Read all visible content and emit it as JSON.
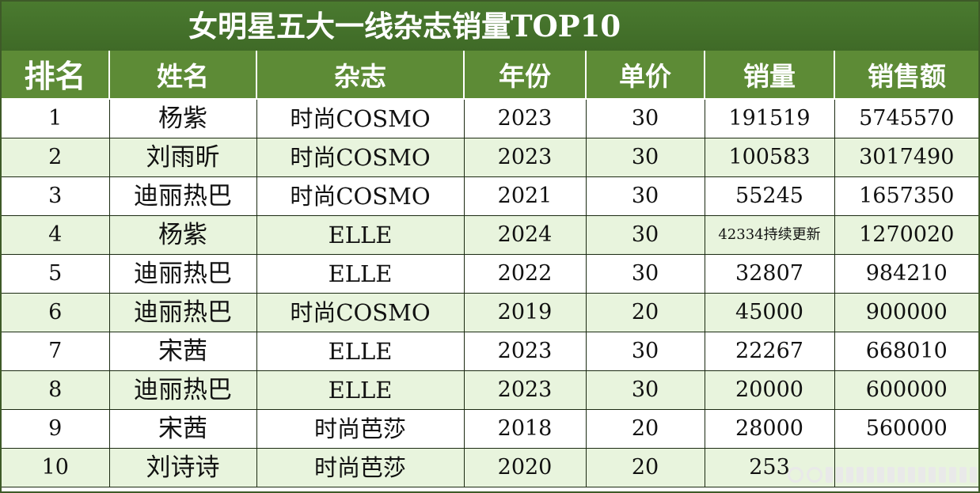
{
  "title": "女明星五大一线杂志销量TOP10",
  "headers": [
    "排名",
    "姓名",
    "杂志",
    "年份",
    "单价",
    "销量",
    "销售额"
  ],
  "rows": [
    {
      "rank": "1",
      "name": "杨紫",
      "magazine": "时尚COSMO",
      "year": "2023",
      "price": "30",
      "sales": "191519",
      "revenue": "5745570"
    },
    {
      "rank": "2",
      "name": "刘雨昕",
      "magazine": "时尚COSMO",
      "year": "2023",
      "price": "30",
      "sales": "100583",
      "revenue": "3017490"
    },
    {
      "rank": "3",
      "name": "迪丽热巴",
      "magazine": "时尚COSMO",
      "year": "2021",
      "price": "30",
      "sales": "55245",
      "revenue": "1657350"
    },
    {
      "rank": "4",
      "name": "杨紫",
      "magazine": "ELLE",
      "year": "2024",
      "price": "30",
      "sales": "42334持续更新",
      "revenue": "1270020"
    },
    {
      "rank": "5",
      "name": "迪丽热巴",
      "magazine": "ELLE",
      "year": "2022",
      "price": "30",
      "sales": "32807",
      "revenue": "984210"
    },
    {
      "rank": "6",
      "name": "迪丽热巴",
      "magazine": "时尚COSMO",
      "year": "2019",
      "price": "20",
      "sales": "45000",
      "revenue": "900000"
    },
    {
      "rank": "7",
      "name": "宋茜",
      "magazine": "ELLE",
      "year": "2023",
      "price": "30",
      "sales": "22267",
      "revenue": "668010"
    },
    {
      "rank": "8",
      "name": "迪丽热巴",
      "magazine": "ELLE",
      "year": "2023",
      "price": "30",
      "sales": "20000",
      "revenue": "600000"
    },
    {
      "rank": "9",
      "name": "宋茜",
      "magazine": "时尚芭莎",
      "year": "2018",
      "price": "20",
      "sales": "28000",
      "revenue": "560000"
    },
    {
      "rank": "10",
      "name": "刘诗诗",
      "magazine": "时尚芭莎",
      "year": "2020",
      "price": "20",
      "sales": "253",
      "revenue": ""
    }
  ],
  "colors": {
    "title_bg": "#3f6a27",
    "header_bg": "#5d8b36",
    "stripe_bg": "#e8f4dd"
  }
}
